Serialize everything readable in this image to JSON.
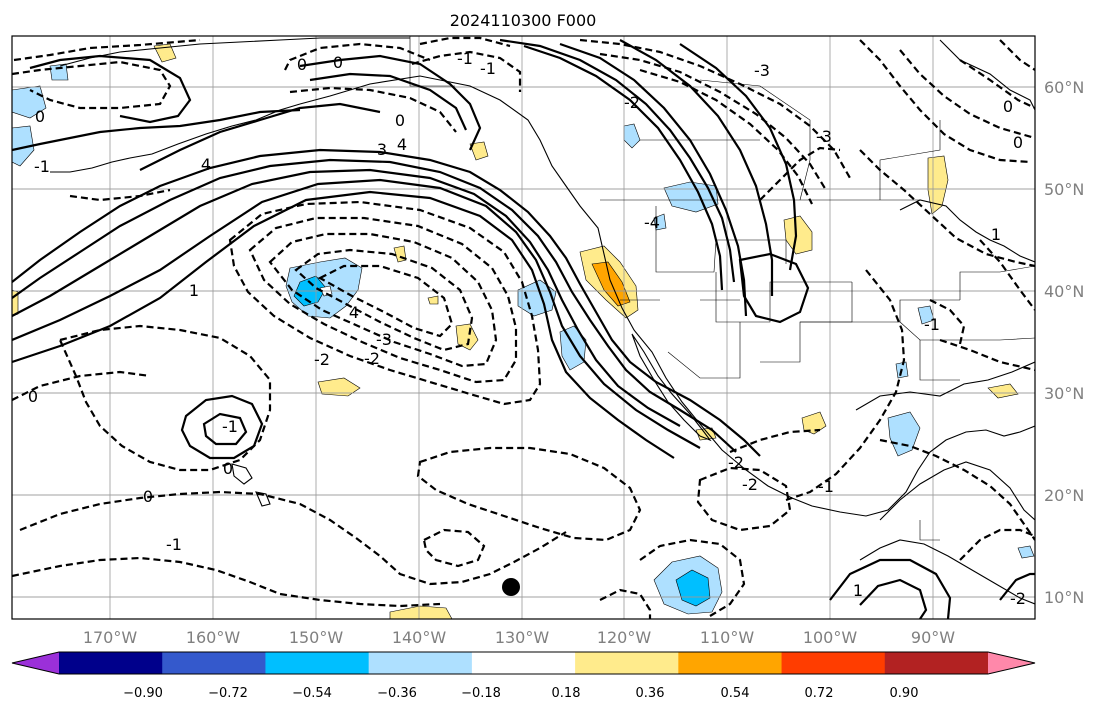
{
  "title": "2024110300 F000",
  "lon_ticks": [
    "170°W",
    "160°W",
    "150°W",
    "140°W",
    "130°W",
    "120°W",
    "110°W",
    "100°W",
    "90°W"
  ],
  "lat_ticks": [
    "60°N",
    "50°N",
    "40°N",
    "30°N",
    "20°N",
    "10°N"
  ],
  "colorbar": {
    "tick_labels": [
      "−0.90",
      "−0.72",
      "−0.54",
      "−0.36",
      "−0.18",
      "0.18",
      "0.36",
      "0.54",
      "0.72",
      "0.90"
    ],
    "colors": [
      "#9b30d9",
      "#00008b",
      "#3459cc",
      "#00bfff",
      "#aee0ff",
      "#ffffff",
      "#ffeb8c",
      "#ffa500",
      "#ff3d00",
      "#b22222",
      "#ff88aa"
    ]
  },
  "contour_labels": [
    "0",
    "0",
    "-1",
    "-1",
    "0",
    "0",
    "-2",
    "-3",
    "3",
    "4",
    "-3",
    "4",
    "-1",
    "4",
    "-3",
    "-2",
    "-2",
    "-4",
    "1",
    "0",
    "-1",
    "0",
    "1",
    "-1",
    "0",
    "-2",
    "-1",
    "-2",
    "-1",
    "1",
    "-2",
    "0",
    "0"
  ],
  "marker": "station-dot"
}
